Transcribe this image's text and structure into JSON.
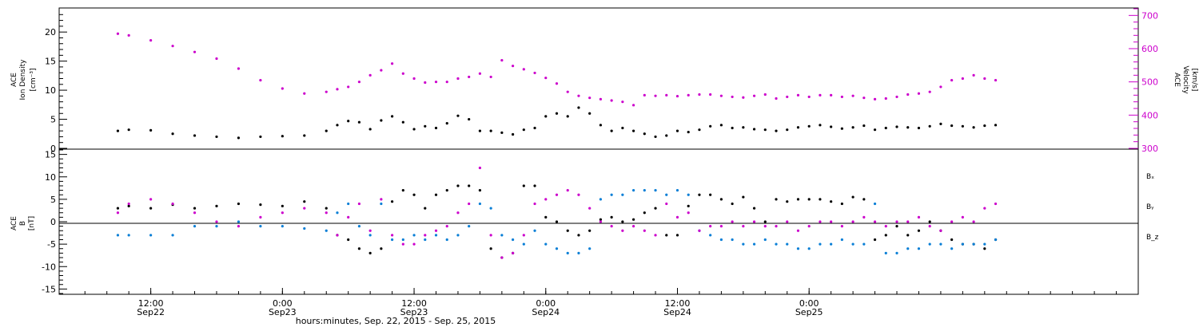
{
  "colors": {
    "black": "#000000",
    "magenta": "#cc00cc",
    "blue": "#0a7fd6"
  },
  "chart_data": [
    {
      "type": "scatter",
      "panel": "top",
      "ylabel_left": [
        "ACE",
        "Ion Density",
        "[cm⁻³]"
      ],
      "ylabel_right": [
        "ACE",
        "Velocity",
        "[km/s]"
      ],
      "ylim_left": [
        0,
        24
      ],
      "ylim_right": [
        300,
        720
      ],
      "yticks_left": [
        "0",
        "5",
        "10",
        "15",
        "20"
      ],
      "yticks_right": [
        "300",
        "400",
        "500",
        "600",
        "700"
      ],
      "x_unit": "hours since Sep 22 00:00",
      "series": [
        {
          "key": "density",
          "color": "#000000",
          "axis": "left",
          "x": [
            9,
            10,
            12,
            14,
            16,
            18,
            20,
            22,
            24,
            26,
            28,
            29,
            30,
            31,
            32,
            33,
            34,
            35,
            36,
            37,
            38,
            39,
            40,
            41,
            42,
            43,
            44,
            45,
            46,
            47,
            48,
            49,
            50,
            51,
            52,
            53,
            54,
            55,
            56,
            57,
            58,
            59,
            60,
            61,
            62,
            63,
            64,
            65,
            66,
            67,
            68,
            69,
            70,
            71,
            72,
            73,
            74,
            75,
            76,
            77,
            78,
            79,
            80,
            81,
            82,
            83,
            84,
            85,
            86,
            87,
            88,
            89
          ],
          "y": [
            3,
            3.2,
            3.1,
            2.5,
            2.2,
            2,
            1.8,
            2,
            2.1,
            2.2,
            3,
            4,
            4.7,
            4.5,
            3.3,
            4.8,
            5.5,
            4.5,
            3.3,
            3.8,
            3.5,
            4.3,
            5.6,
            5,
            3,
            3,
            2.7,
            2.4,
            3.2,
            3.5,
            5.5,
            6,
            5.5,
            7,
            6,
            4,
            3,
            3.5,
            3,
            2.5,
            2,
            2.2,
            3,
            2.8,
            3.2,
            3.8,
            4,
            3.5,
            3.6,
            3.3,
            3.2,
            3,
            3.2,
            3.6,
            3.8,
            4,
            3.7,
            3.4,
            3.6,
            3.9,
            3.2,
            3.5,
            3.7,
            3.6,
            3.5,
            3.8,
            4.2,
            3.9,
            3.8,
            3.6,
            3.9,
            4
          ]
        },
        {
          "key": "velocity",
          "color": "#cc00cc",
          "axis": "right",
          "x": [
            9,
            10,
            12,
            14,
            16,
            18,
            20,
            22,
            24,
            26,
            28,
            29,
            30,
            31,
            32,
            33,
            34,
            35,
            36,
            37,
            38,
            39,
            40,
            41,
            42,
            43,
            44,
            45,
            46,
            47,
            48,
            49,
            50,
            51,
            52,
            53,
            54,
            55,
            56,
            57,
            58,
            59,
            60,
            61,
            62,
            63,
            64,
            65,
            66,
            67,
            68,
            69,
            70,
            71,
            72,
            73,
            74,
            75,
            76,
            77,
            78,
            79,
            80,
            81,
            82,
            83,
            84,
            85,
            86,
            87,
            88,
            89
          ],
          "y": [
            645,
            640,
            625,
            608,
            590,
            570,
            540,
            505,
            480,
            465,
            470,
            478,
            485,
            500,
            520,
            535,
            555,
            525,
            510,
            498,
            500,
            500,
            510,
            515,
            525,
            515,
            565,
            548,
            538,
            527,
            512,
            495,
            470,
            458,
            452,
            448,
            444,
            440,
            430,
            460,
            458,
            460,
            457,
            460,
            462,
            462,
            458,
            455,
            453,
            458,
            462,
            450,
            455,
            460,
            455,
            460,
            460,
            455,
            458,
            452,
            448,
            450,
            455,
            462,
            465,
            470,
            485,
            505,
            510,
            520,
            510,
            505
          ]
        }
      ]
    },
    {
      "type": "scatter",
      "panel": "bottom",
      "ylabel_left": [
        "ACE",
        "B",
        "[nT]"
      ],
      "ylim": [
        -16,
        16
      ],
      "yticks": [
        "-15",
        "-10",
        "-5",
        "0",
        "5",
        "10",
        "15"
      ],
      "legend": [
        "Bₓ",
        "Bᵧ",
        "B_z"
      ],
      "legend_placement": "right",
      "series": [
        {
          "name": "Bₓ",
          "color": "#000000",
          "x": [
            9,
            10,
            12,
            14,
            16,
            18,
            20,
            22,
            24,
            26,
            28,
            29,
            30,
            31,
            32,
            33,
            34,
            35,
            36,
            37,
            38,
            39,
            40,
            41,
            42,
            43,
            44,
            45,
            46,
            47,
            48,
            49,
            50,
            51,
            52,
            53,
            54,
            55,
            56,
            57,
            58,
            59,
            60,
            61,
            62,
            63,
            64,
            65,
            66,
            67,
            68,
            69,
            70,
            71,
            72,
            73,
            74,
            75,
            76,
            77,
            78,
            79,
            80,
            81,
            82,
            83,
            84,
            85,
            86,
            87,
            88,
            89
          ],
          "y": [
            3,
            3.5,
            3,
            3.8,
            3,
            3.5,
            4,
            3.8,
            3.5,
            4.5,
            3,
            -3,
            -4,
            -6,
            -7,
            -6,
            4.5,
            7,
            6,
            3,
            6,
            7,
            8,
            8,
            7,
            -6,
            -8,
            -7,
            8,
            8,
            1,
            0,
            -2,
            -3,
            -2,
            0.5,
            1,
            0,
            0.5,
            2,
            3,
            -3,
            -3,
            3.5,
            6,
            6,
            5,
            4,
            5.5,
            3,
            0,
            5,
            4.5,
            5,
            5,
            5,
            4.5,
            4,
            5.5,
            5,
            -4,
            -3,
            -1,
            -3,
            -2,
            0,
            -2,
            -4,
            -5,
            -5,
            -6,
            -4
          ]
        },
        {
          "name": "Bᵧ",
          "color": "#0a7fd6",
          "x": [
            9,
            10,
            12,
            14,
            16,
            18,
            20,
            22,
            24,
            26,
            28,
            29,
            30,
            31,
            32,
            33,
            34,
            35,
            36,
            37,
            38,
            39,
            40,
            41,
            42,
            43,
            44,
            45,
            46,
            47,
            48,
            49,
            50,
            51,
            52,
            53,
            54,
            55,
            56,
            57,
            58,
            59,
            60,
            61,
            62,
            63,
            64,
            65,
            66,
            67,
            68,
            69,
            70,
            71,
            72,
            73,
            74,
            75,
            76,
            77,
            78,
            79,
            80,
            81,
            82,
            83,
            84,
            85,
            86,
            87,
            88,
            89
          ],
          "y": [
            -3,
            -3,
            -3,
            -3,
            -1,
            -1,
            0,
            -1,
            -1,
            -1.5,
            -2,
            2,
            4,
            -1,
            -3,
            4,
            -4,
            -4,
            -3,
            -4,
            -3,
            -4,
            -3,
            -1,
            4,
            3,
            -3,
            -4,
            -5,
            -2,
            -5,
            -6,
            -7,
            -7,
            -6,
            5,
            6,
            6,
            7,
            7,
            7,
            6,
            7,
            6,
            -2,
            -3,
            -4,
            -4,
            -5,
            -5,
            -4,
            -5,
            -5,
            -6,
            -6,
            -5,
            -5,
            -4,
            -5,
            -5,
            4,
            -7,
            -7,
            -6,
            -6,
            -5,
            -5,
            -6,
            -5,
            -5,
            -5,
            -4
          ]
        },
        {
          "name": "B_z",
          "color": "#cc00cc",
          "x": [
            9,
            10,
            12,
            14,
            16,
            18,
            20,
            22,
            24,
            26,
            28,
            29,
            30,
            31,
            32,
            33,
            34,
            35,
            36,
            37,
            38,
            39,
            40,
            41,
            42,
            43,
            44,
            45,
            46,
            47,
            48,
            49,
            50,
            51,
            52,
            53,
            54,
            55,
            56,
            57,
            58,
            59,
            60,
            61,
            62,
            63,
            64,
            65,
            66,
            67,
            68,
            69,
            70,
            71,
            72,
            73,
            74,
            75,
            76,
            77,
            78,
            79,
            80,
            81,
            82,
            83,
            84,
            85,
            86,
            87,
            88,
            89
          ],
          "y": [
            2,
            4,
            5,
            4,
            2,
            0,
            -1,
            1,
            2,
            3,
            2,
            -3,
            1,
            4,
            -2,
            5,
            -3,
            -5,
            -5,
            -3,
            -2,
            -1,
            2,
            4,
            12,
            -3,
            -8,
            -7,
            -3,
            4,
            5,
            6,
            7,
            6,
            3,
            0,
            -1,
            -2,
            -1,
            -2,
            -3,
            4,
            1,
            2,
            -2,
            -1,
            -1,
            0,
            -1,
            0,
            -1,
            -1,
            0,
            -2,
            -1,
            0,
            0,
            -1,
            0,
            1,
            0,
            -1,
            0,
            0,
            1,
            -1,
            -2,
            0,
            1,
            0,
            3,
            4
          ]
        }
      ]
    }
  ],
  "axis": {
    "xlabel": "hours:minutes, Sep. 22, 2015 - Sep. 25, 2015",
    "ticks": [
      {
        "time": "12:00",
        "date": "Sep22"
      },
      {
        "time": "0:00",
        "date": "Sep23"
      },
      {
        "time": "12:00",
        "date": "Sep23"
      },
      {
        "time": "0:00",
        "date": "Sep24"
      },
      {
        "time": "12:00",
        "date": "Sep24"
      },
      {
        "time": "0:00",
        "date": "Sep25"
      }
    ]
  }
}
